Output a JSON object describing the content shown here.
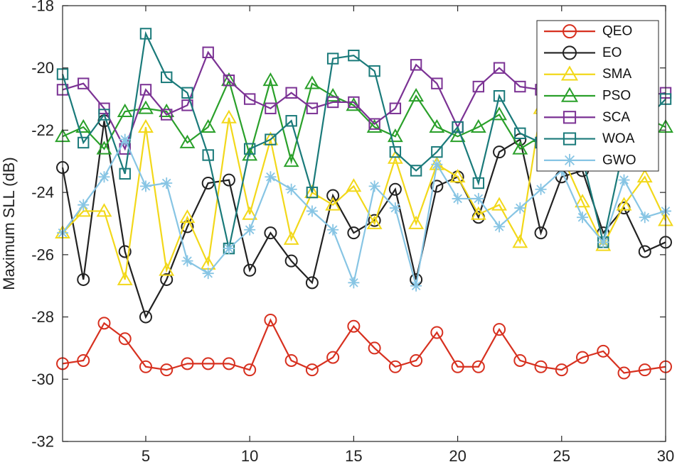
{
  "chart_data": {
    "type": "line",
    "title": "",
    "xlabel": "",
    "ylabel": "Maximum SLL (dB)",
    "xlim": [
      1,
      30
    ],
    "ylim": [
      -32,
      -18
    ],
    "xticks": [
      5,
      10,
      15,
      20,
      25,
      30
    ],
    "yticks": [
      -32,
      -30,
      -28,
      -26,
      -24,
      -22,
      -20,
      -18
    ],
    "xtick_labels": [
      "5",
      "10",
      "15",
      "20",
      "25",
      "30"
    ],
    "ytick_labels": [
      "-32",
      "-30",
      "-28",
      "-26",
      "-24",
      "-22",
      "-20",
      "-18"
    ],
    "grid": false,
    "legend_position": "top-right",
    "x": [
      1,
      2,
      3,
      4,
      5,
      6,
      7,
      8,
      9,
      10,
      11,
      12,
      13,
      14,
      15,
      16,
      17,
      18,
      19,
      20,
      21,
      22,
      23,
      24,
      25,
      26,
      27,
      28,
      29,
      30
    ],
    "series": [
      {
        "name": "QEO",
        "color": "#d7301f",
        "marker": "circle",
        "values": [
          -29.5,
          -29.4,
          -28.2,
          -28.7,
          -29.6,
          -29.7,
          -29.5,
          -29.5,
          -29.5,
          -29.7,
          -28.1,
          -29.4,
          -29.7,
          -29.3,
          -28.3,
          -29.0,
          -29.6,
          -29.4,
          -28.5,
          -29.6,
          -29.6,
          -28.4,
          -29.4,
          -29.6,
          -29.7,
          -29.3,
          -29.1,
          -29.8,
          -29.7,
          -29.6
        ]
      },
      {
        "name": "EO",
        "color": "#222222",
        "marker": "circle",
        "values": [
          -23.2,
          -26.8,
          -21.7,
          -25.9,
          -28.0,
          -26.8,
          -25.1,
          -23.7,
          -23.6,
          -26.5,
          -25.3,
          -26.2,
          -26.9,
          -24.1,
          -25.3,
          -24.9,
          -23.9,
          -26.8,
          -23.8,
          -23.5,
          -24.8,
          -22.7,
          -22.3,
          -25.3,
          -23.5,
          -23.3,
          -25.3,
          -24.5,
          -25.9,
          -25.6
        ]
      },
      {
        "name": "SMA",
        "color": "#f2d81a",
        "marker": "triangle",
        "values": [
          -25.3,
          -24.6,
          -24.6,
          -26.8,
          -21.9,
          -26.5,
          -24.8,
          -26.3,
          -21.6,
          -24.7,
          -22.3,
          -25.5,
          -24.0,
          -24.4,
          -23.8,
          -25.0,
          -22.9,
          -25.0,
          -23.1,
          -23.5,
          -24.7,
          -24.4,
          -25.6,
          -21.3,
          -22.8,
          -24.3,
          -25.7,
          -24.4,
          -23.5,
          -24.9
        ]
      },
      {
        "name": "PSO",
        "color": "#2aa02a",
        "marker": "triangle",
        "values": [
          -22.2,
          -21.9,
          -22.6,
          -21.4,
          -21.3,
          -21.4,
          -22.4,
          -21.9,
          -20.4,
          -22.8,
          -20.4,
          -23.0,
          -20.5,
          -20.9,
          -21.2,
          -21.9,
          -22.2,
          -20.9,
          -21.9,
          -22.2,
          -21.9,
          -21.5,
          -22.6,
          -22.2,
          -22.1,
          -21.6,
          -21.9,
          -21.4,
          -21.6,
          -21.9
        ]
      },
      {
        "name": "SCA",
        "color": "#7b3294",
        "marker": "square",
        "values": [
          -20.7,
          -20.5,
          -21.3,
          -22.6,
          -20.7,
          -21.5,
          -21.2,
          -19.5,
          -20.4,
          -21.0,
          -21.3,
          -20.8,
          -21.3,
          -21.1,
          -21.1,
          -21.8,
          -21.3,
          -19.9,
          -20.5,
          -21.9,
          -20.6,
          -20.0,
          -20.6,
          -20.7,
          -20.6,
          -21.0,
          -21.0,
          -20.9,
          -20.9,
          -20.8
        ]
      },
      {
        "name": "WOA",
        "color": "#1a7a7a",
        "marker": "square",
        "values": [
          -20.2,
          -22.4,
          -21.5,
          -23.4,
          -18.9,
          -20.3,
          -20.8,
          -22.8,
          -25.8,
          -22.6,
          -22.3,
          -21.7,
          -24.0,
          -19.7,
          -19.6,
          -20.1,
          -22.7,
          -23.3,
          -22.7,
          -21.9,
          -23.7,
          -20.9,
          -22.1,
          -22.4,
          -22.6,
          -22.9,
          -25.6,
          -22.5,
          -21.7,
          -21.0
        ]
      },
      {
        "name": "GWO",
        "color": "#87c5e4",
        "marker": "asterisk",
        "values": [
          -25.3,
          -24.4,
          -23.5,
          -22.3,
          -23.8,
          -23.7,
          -26.2,
          -26.6,
          -25.8,
          -25.2,
          -23.5,
          -23.9,
          -24.6,
          -25.2,
          -26.9,
          -23.8,
          -24.5,
          -27.0,
          -23.1,
          -24.2,
          -24.2,
          -25.1,
          -24.5,
          -23.9,
          -23.3,
          -24.8,
          -25.6,
          -23.6,
          -24.8,
          -24.6
        ]
      }
    ]
  }
}
